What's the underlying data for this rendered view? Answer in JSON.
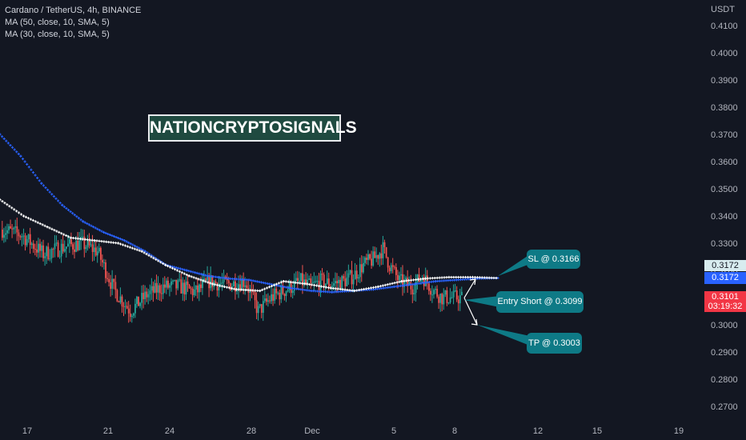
{
  "legend": {
    "symbol": "Cardano / TetherUS, 4h, BINANCE",
    "ma1": "MA (50, close, 10, SMA, 5)",
    "ma2": "MA (30, close, 10, SMA, 5)"
  },
  "watermark": "NATIONCRYPTOSIGNALS",
  "annotations": {
    "sl": "SL @ 0.3166",
    "entry": "Entry Short @ 0.3099",
    "tp": "TP @ 0.3003"
  },
  "price_tags": {
    "ma_white": "0.3172",
    "ma_blue": "0.3172",
    "last": "0.3101",
    "countdown": "03:19:32"
  },
  "colors": {
    "background": "#131722",
    "up": "#26a69a",
    "down": "#ef5350",
    "ma50": "#2962ff",
    "ma30": "#ffffff",
    "annotation": "#0e7a86"
  },
  "chart_data": {
    "type": "candlestick",
    "y_axis_unit": "USDT",
    "y_ticks": [
      "0.4100",
      "0.4000",
      "0.3900",
      "0.3800",
      "0.3700",
      "0.3600",
      "0.3500",
      "0.3400",
      "0.3300",
      "0.3200",
      "0.3100",
      "0.3000",
      "0.2900",
      "0.2800",
      "0.2700"
    ],
    "ylim": [
      0.2685,
      0.417
    ],
    "x_ticks": [
      "17",
      "21",
      "24",
      "28",
      "Dec",
      "5",
      "8",
      "12",
      "15",
      "19"
    ],
    "series": [
      {
        "name": "MA (50, close, 10, SMA, 5)",
        "values": [
          0.37,
          0.362,
          0.352,
          0.344,
          0.338,
          0.334,
          0.331,
          0.327,
          0.322,
          0.32,
          0.318,
          0.317,
          0.3165,
          0.315,
          0.3135,
          0.3125,
          0.312,
          0.3125,
          0.313,
          0.314,
          0.315,
          0.316,
          0.3165,
          0.317,
          0.3172
        ]
      },
      {
        "name": "MA (30, close, 10, SMA, 5)",
        "values": [
          0.346,
          0.34,
          0.336,
          0.332,
          0.331,
          0.33,
          0.327,
          0.322,
          0.318,
          0.315,
          0.313,
          0.3125,
          0.316,
          0.315,
          0.3135,
          0.3125,
          0.314,
          0.316,
          0.317,
          0.3175,
          0.3175,
          0.3172
        ]
      }
    ],
    "last_price": 0.3101,
    "levels": {
      "stop_loss": 0.3166,
      "entry_short": 0.3099,
      "take_profit": 0.3003
    }
  }
}
